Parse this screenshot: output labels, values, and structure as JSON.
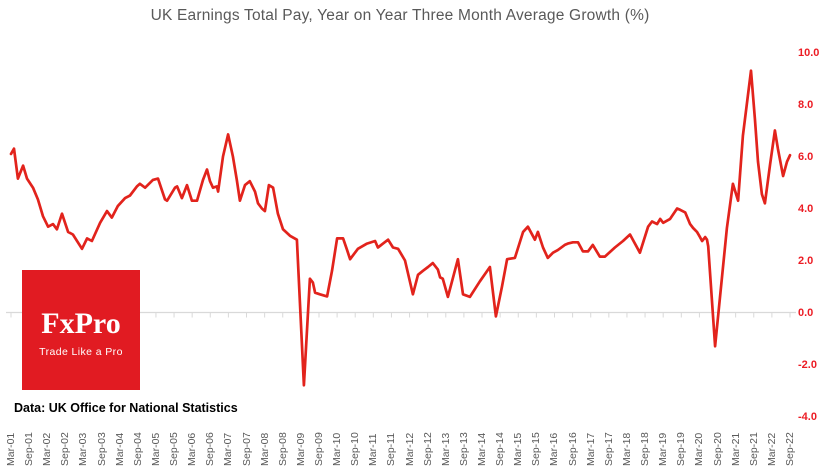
{
  "chart_data": {
    "type": "line",
    "title": "UK Earnings Total Pay, Year on Year Three Month Average Growth (%)",
    "xlabel": "",
    "ylabel": "",
    "ylim": [
      -4.0,
      10.0
    ],
    "grid": "zero-axis-only",
    "legend": "none",
    "y_tick_labels": [
      "10.0",
      "8.0",
      "6.0",
      "4.0",
      "2.0",
      "0.0",
      "-2.0",
      "-4.0"
    ],
    "y_tick_values": [
      10,
      8,
      6,
      4,
      2,
      0,
      -2,
      -4
    ],
    "x_tick_labels": [
      "Mar-01",
      "Sep-01",
      "Mar-02",
      "Sep-02",
      "Mar-03",
      "Sep-03",
      "Mar-04",
      "Sep-04",
      "Mar-05",
      "Sep-05",
      "Mar-06",
      "Sep-06",
      "Mar-07",
      "Sep-07",
      "Mar-08",
      "Sep-08",
      "Mar-09",
      "Sep-09",
      "Mar-10",
      "Sep-10",
      "Mar-11",
      "Sep-11",
      "Mar-12",
      "Sep-12",
      "Mar-13",
      "Sep-13",
      "Mar-14",
      "Sep-14",
      "Mar-15",
      "Sep-15",
      "Mar-16",
      "Sep-16",
      "Mar-17",
      "Sep-17",
      "Mar-18",
      "Sep-18",
      "Mar-19",
      "Sep-19",
      "Mar-20",
      "Sep-20",
      "Mar-21",
      "Sep-21",
      "Mar-22",
      "Sep-22"
    ],
    "x_unit": "months since Mar-2001, ticks every 6 months",
    "series": [
      {
        "name": "UK earnings total pay, YoY 3-month average growth (%)",
        "points": [
          [
            0,
            6.1
          ],
          [
            1,
            6.3
          ],
          [
            2.3,
            5.15
          ],
          [
            4,
            5.65
          ],
          [
            5.3,
            5.15
          ],
          [
            7.3,
            4.8
          ],
          [
            8.9,
            4.35
          ],
          [
            10.6,
            3.7
          ],
          [
            12.3,
            3.3
          ],
          [
            13.9,
            3.4
          ],
          [
            15.2,
            3.2
          ],
          [
            16.9,
            3.8
          ],
          [
            18.9,
            3.1
          ],
          [
            20.5,
            3.0
          ],
          [
            23.5,
            2.45
          ],
          [
            25.2,
            2.85
          ],
          [
            26.8,
            2.75
          ],
          [
            29.5,
            3.45
          ],
          [
            31.8,
            3.9
          ],
          [
            33.4,
            3.65
          ],
          [
            35.4,
            4.1
          ],
          [
            37.8,
            4.4
          ],
          [
            39.4,
            4.5
          ],
          [
            41.7,
            4.85
          ],
          [
            42.7,
            4.95
          ],
          [
            44.4,
            4.8
          ],
          [
            47,
            5.1
          ],
          [
            48.7,
            5.15
          ],
          [
            51,
            4.35
          ],
          [
            51.7,
            4.3
          ],
          [
            54.3,
            4.8
          ],
          [
            55,
            4.85
          ],
          [
            56.6,
            4.4
          ],
          [
            58.3,
            4.9
          ],
          [
            59.9,
            4.3
          ],
          [
            61.6,
            4.3
          ],
          [
            63.6,
            5.1
          ],
          [
            64.9,
            5.5
          ],
          [
            65.9,
            5.05
          ],
          [
            66.9,
            4.8
          ],
          [
            68.2,
            4.85
          ],
          [
            68.6,
            4.65
          ],
          [
            70.2,
            6.0
          ],
          [
            71.9,
            6.85
          ],
          [
            73.5,
            6.0
          ],
          [
            74.8,
            5.1
          ],
          [
            75.8,
            4.3
          ],
          [
            77.5,
            4.9
          ],
          [
            79.1,
            5.05
          ],
          [
            80.8,
            4.65
          ],
          [
            81.8,
            4.2
          ],
          [
            83.1,
            4.0
          ],
          [
            84.1,
            3.9
          ],
          [
            85.4,
            4.9
          ],
          [
            86.8,
            4.8
          ],
          [
            88.4,
            3.8
          ],
          [
            90.1,
            3.2
          ],
          [
            92.4,
            2.95
          ],
          [
            94.7,
            2.8
          ],
          [
            97,
            -2.8
          ],
          [
            99,
            1.3
          ],
          [
            100,
            1.15
          ],
          [
            100.7,
            0.76
          ],
          [
            102.3,
            0.7
          ],
          [
            104.7,
            0.62
          ],
          [
            106.3,
            1.6
          ],
          [
            108,
            2.85
          ],
          [
            110,
            2.85
          ],
          [
            111.3,
            2.4
          ],
          [
            112.3,
            2.05
          ],
          [
            114.9,
            2.45
          ],
          [
            117.9,
            2.65
          ],
          [
            120.6,
            2.75
          ],
          [
            121.5,
            2.5
          ],
          [
            123.2,
            2.65
          ],
          [
            124.9,
            2.8
          ],
          [
            126.5,
            2.5
          ],
          [
            128.2,
            2.45
          ],
          [
            130.5,
            2.0
          ],
          [
            133.1,
            0.7
          ],
          [
            134.8,
            1.45
          ],
          [
            136.4,
            1.6
          ],
          [
            138.1,
            1.75
          ],
          [
            139.7,
            1.9
          ],
          [
            141.4,
            1.65
          ],
          [
            142.1,
            1.35
          ],
          [
            143,
            1.3
          ],
          [
            144.7,
            0.6
          ],
          [
            148,
            2.05
          ],
          [
            149.7,
            0.7
          ],
          [
            152,
            0.6
          ],
          [
            155.3,
            1.2
          ],
          [
            158.6,
            1.75
          ],
          [
            160.6,
            -0.15
          ],
          [
            162.6,
            1.0
          ],
          [
            164.3,
            2.05
          ],
          [
            166.9,
            2.1
          ],
          [
            169.6,
            3.1
          ],
          [
            171.2,
            3.3
          ],
          [
            173.5,
            2.8
          ],
          [
            174.5,
            3.1
          ],
          [
            176.2,
            2.5
          ],
          [
            177.8,
            2.1
          ],
          [
            179.5,
            2.3
          ],
          [
            181.1,
            2.4
          ],
          [
            183.4,
            2.6
          ],
          [
            184.4,
            2.65
          ],
          [
            186.1,
            2.7
          ],
          [
            187.8,
            2.7
          ],
          [
            189.4,
            2.35
          ],
          [
            191.1,
            2.35
          ],
          [
            192.7,
            2.6
          ],
          [
            195,
            2.15
          ],
          [
            196.7,
            2.15
          ],
          [
            200,
            2.5
          ],
          [
            202.7,
            2.75
          ],
          [
            205,
            3.0
          ],
          [
            208.3,
            2.3
          ],
          [
            211,
            3.3
          ],
          [
            212.3,
            3.5
          ],
          [
            214,
            3.4
          ],
          [
            215,
            3.6
          ],
          [
            216,
            3.45
          ],
          [
            218.3,
            3.6
          ],
          [
            220.6,
            4.0
          ],
          [
            221.6,
            3.95
          ],
          [
            223.3,
            3.85
          ],
          [
            224.9,
            3.4
          ],
          [
            225.9,
            3.25
          ],
          [
            227.2,
            3.1
          ],
          [
            228.2,
            2.9
          ],
          [
            228.9,
            2.75
          ],
          [
            229.9,
            2.9
          ],
          [
            230.5,
            2.8
          ],
          [
            230.9,
            2.55
          ],
          [
            233.2,
            -1.3
          ],
          [
            237.1,
            3.25
          ],
          [
            239.1,
            4.95
          ],
          [
            240.8,
            4.3
          ],
          [
            242.4,
            6.8
          ],
          [
            245.1,
            9.3
          ],
          [
            246.4,
            7.4
          ],
          [
            247.4,
            5.8
          ],
          [
            248.7,
            4.55
          ],
          [
            249.7,
            4.2
          ],
          [
            251.4,
            5.7
          ],
          [
            253,
            7.0
          ],
          [
            254,
            6.3
          ],
          [
            255.7,
            5.25
          ],
          [
            257,
            5.8
          ],
          [
            258,
            6.05
          ]
        ]
      }
    ]
  },
  "colors": {
    "line_red": "#e2231c",
    "y_label_red": "#ec1c24",
    "axis_gray": "#d9d9d9",
    "title_gray": "#595959",
    "logo_red": "#e11b22"
  },
  "logo": {
    "wordmark": "FxPro",
    "tagline": "Trade Like a Pro"
  },
  "source_note": "Data: UK Office for National Statistics"
}
